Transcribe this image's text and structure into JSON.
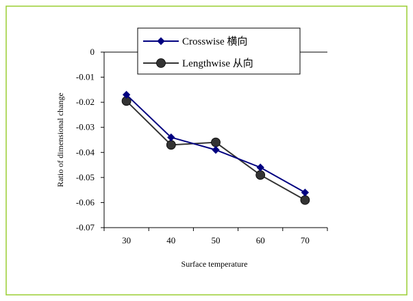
{
  "chart_data": {
    "type": "line",
    "title": "",
    "xlabel": "Surface temperature",
    "ylabel": "Ratio of dimensional change",
    "categories": [
      "30",
      "40",
      "50",
      "60",
      "70"
    ],
    "x": [
      30,
      40,
      50,
      60,
      70
    ],
    "ylim": [
      -0.07,
      0
    ],
    "yticks": [
      "0",
      "-0.01",
      "-0.02",
      "-0.03",
      "-0.04",
      "-0.05",
      "-0.06",
      "-0.07"
    ],
    "grid": false,
    "legend_position": "top-right",
    "series": [
      {
        "name": "Crosswise 横向",
        "marker": "diamond",
        "color": "#000080",
        "values": [
          -0.017,
          -0.034,
          -0.039,
          -0.046,
          -0.056
        ]
      },
      {
        "name": "Lengthwise 从向",
        "marker": "circle",
        "color": "#333333",
        "values": [
          -0.0195,
          -0.037,
          -0.036,
          -0.049,
          -0.059
        ]
      }
    ]
  },
  "colors": {
    "border": "#9acd32",
    "crosswise": "#000080",
    "lengthwise": "#333333"
  }
}
